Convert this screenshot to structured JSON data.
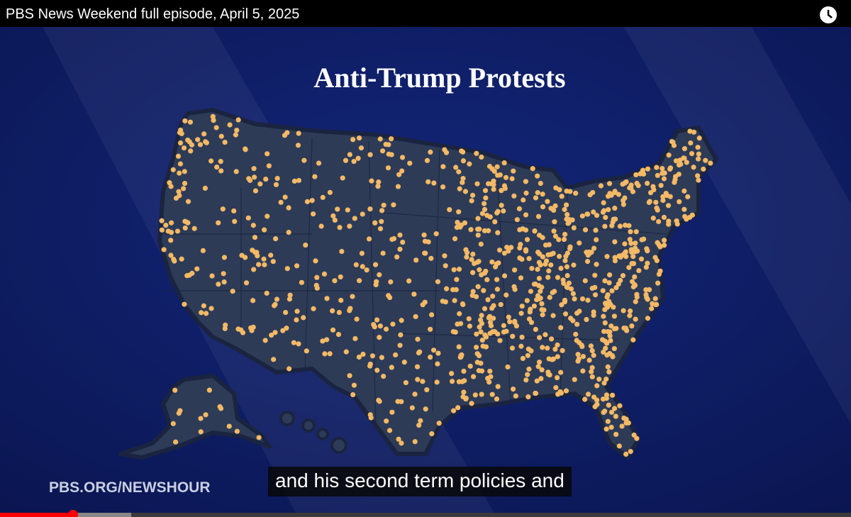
{
  "player": {
    "video_title": "PBS News Weekend full episode, April 5, 2025"
  },
  "graphic": {
    "title": "Anti-Trump Protests",
    "watermark": "PBS.ORG/NEWSHOUR"
  },
  "caption": "and his second term policies and"
}
